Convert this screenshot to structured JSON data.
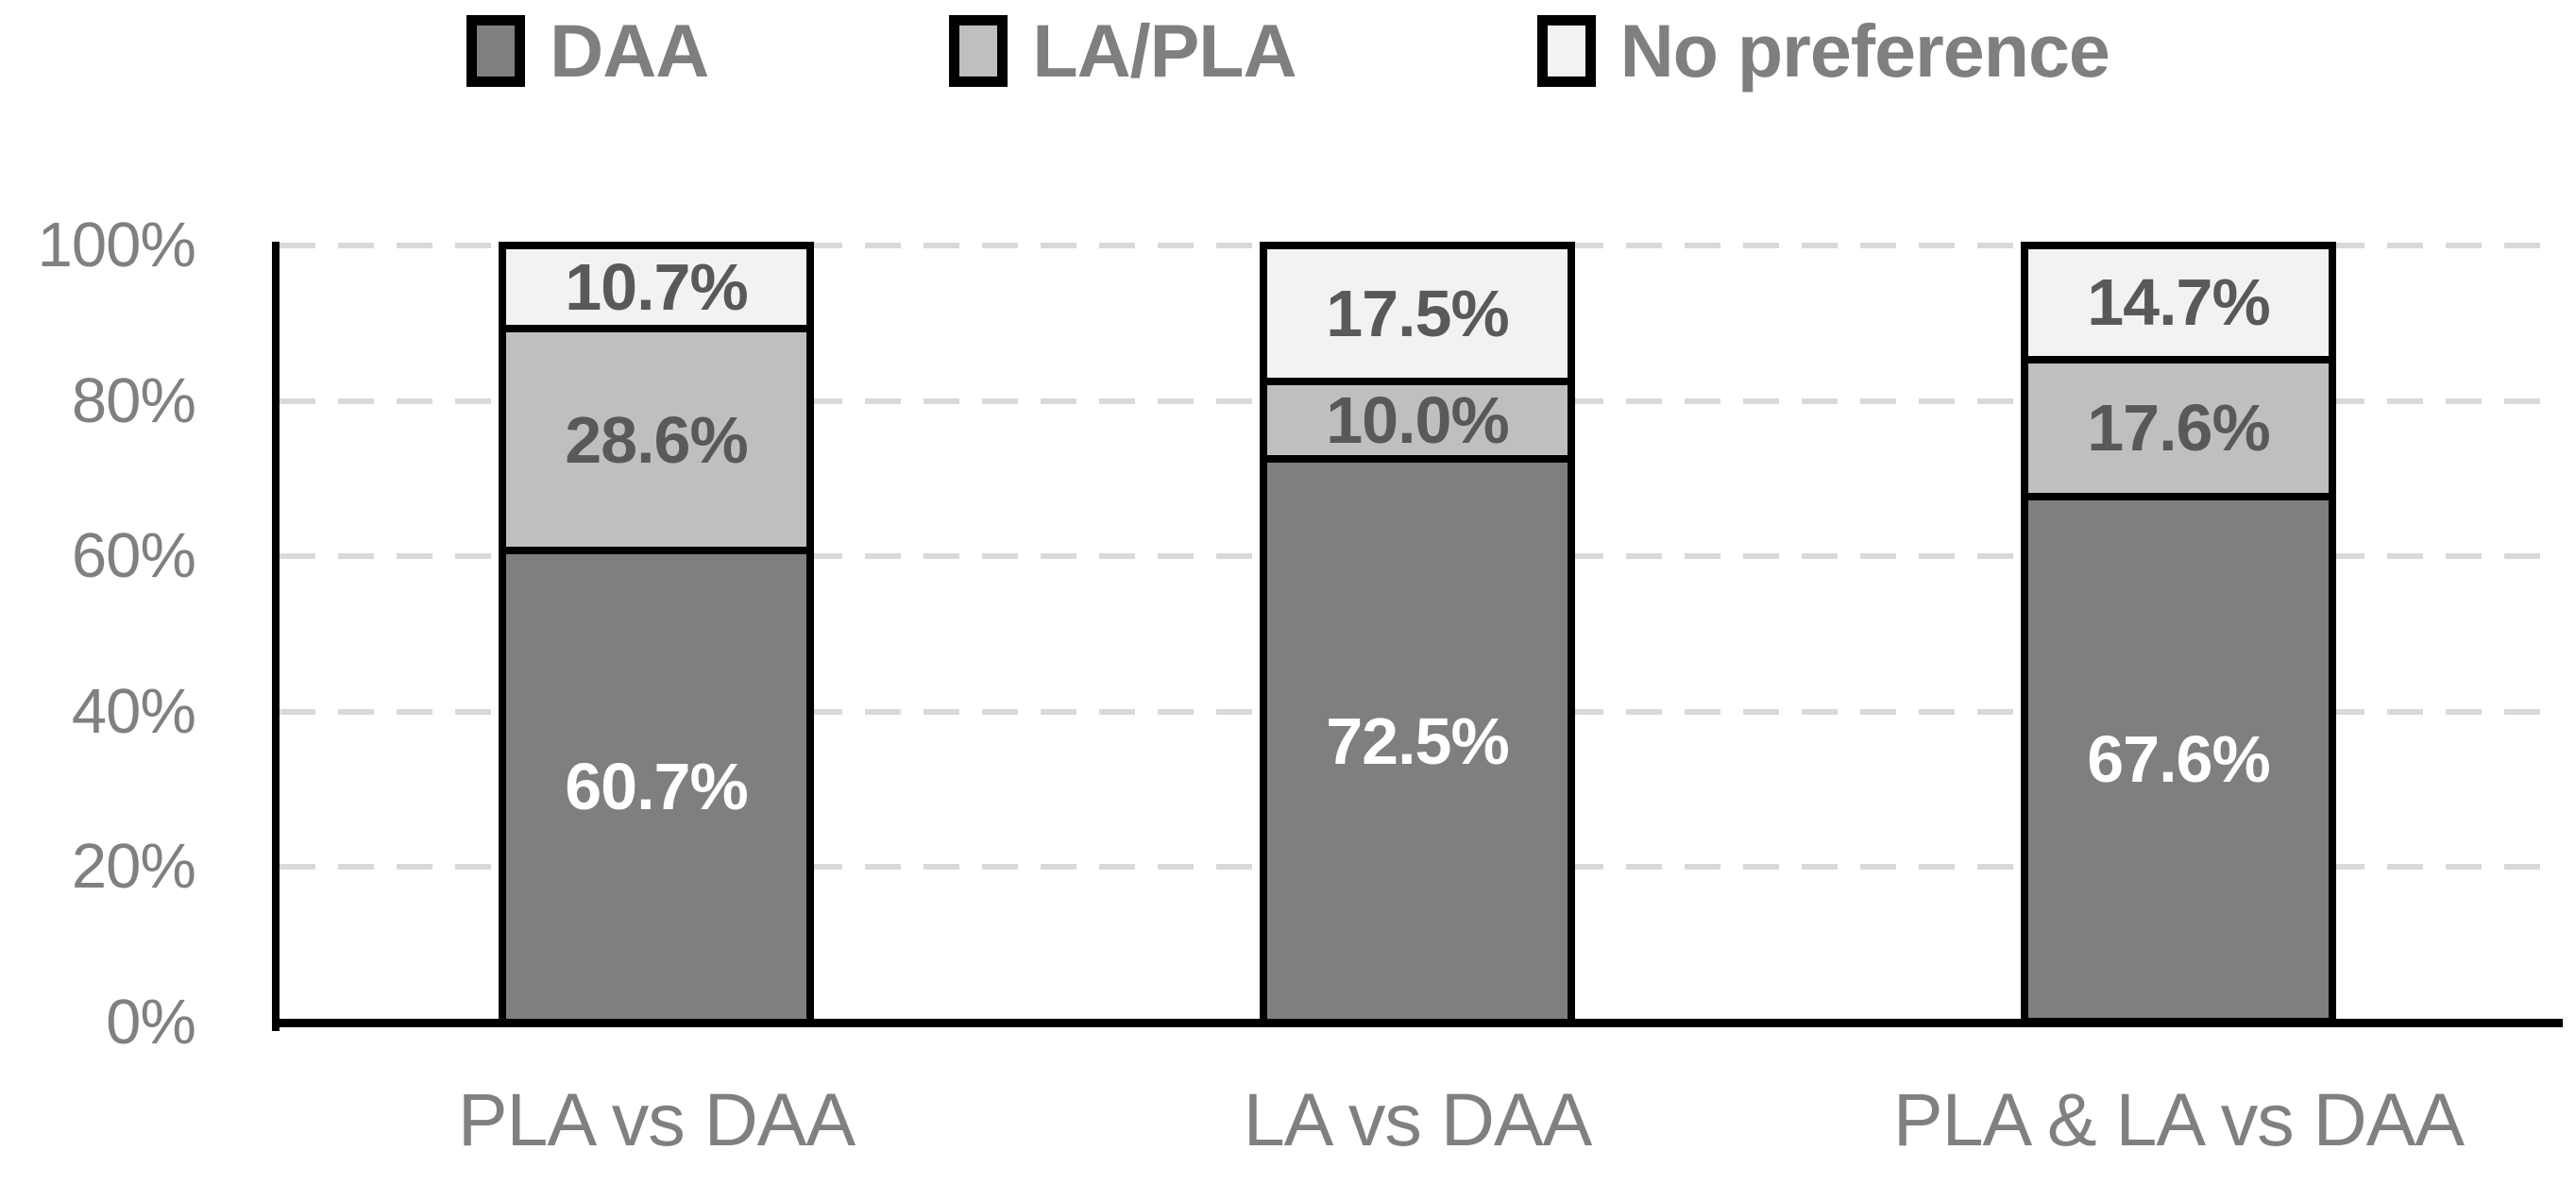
{
  "legend": {
    "items": [
      {
        "label": "DAA",
        "color": "#7f7f7f"
      },
      {
        "label": "LA/PLA",
        "color": "#bfbfbf"
      },
      {
        "label": "No preference",
        "color": "#f2f2f2"
      }
    ]
  },
  "colors": {
    "segment_border": "#000000",
    "axis_line": "#000000",
    "gridline": "#d9d9d9",
    "tick_text": "#808080",
    "category_text": "#808080",
    "legend_text": "#7f7f7f",
    "label_on_light": "#595959",
    "label_on_dark": "#ffffff"
  },
  "chart_data": {
    "type": "bar",
    "stacked": true,
    "title": "",
    "xlabel": "",
    "ylabel": "",
    "categories": [
      "PLA vs DAA",
      "LA vs DAA",
      "PLA & LA vs DAA"
    ],
    "series": [
      {
        "name": "DAA",
        "color": "#7f7f7f",
        "label_color": "#ffffff",
        "values": [
          60.7,
          72.5,
          67.6
        ],
        "labels": [
          "60.7%",
          "72.5%",
          "67.6%"
        ]
      },
      {
        "name": "LA/PLA",
        "color": "#bfbfbf",
        "label_color": "#595959",
        "values": [
          28.6,
          10.0,
          17.6
        ],
        "labels": [
          "28.6%",
          "10.0%",
          "17.6%"
        ]
      },
      {
        "name": "No preference",
        "color": "#f2f2f2",
        "label_color": "#595959",
        "values": [
          10.7,
          17.5,
          14.7
        ],
        "labels": [
          "10.7%",
          "17.5%",
          "14.7%"
        ]
      }
    ],
    "ylim": [
      0,
      100
    ],
    "yticks": [
      "0%",
      "20%",
      "40%",
      "60%",
      "80%",
      "100%"
    ],
    "grid": "horizontal-dashed",
    "legend_position": "top"
  }
}
